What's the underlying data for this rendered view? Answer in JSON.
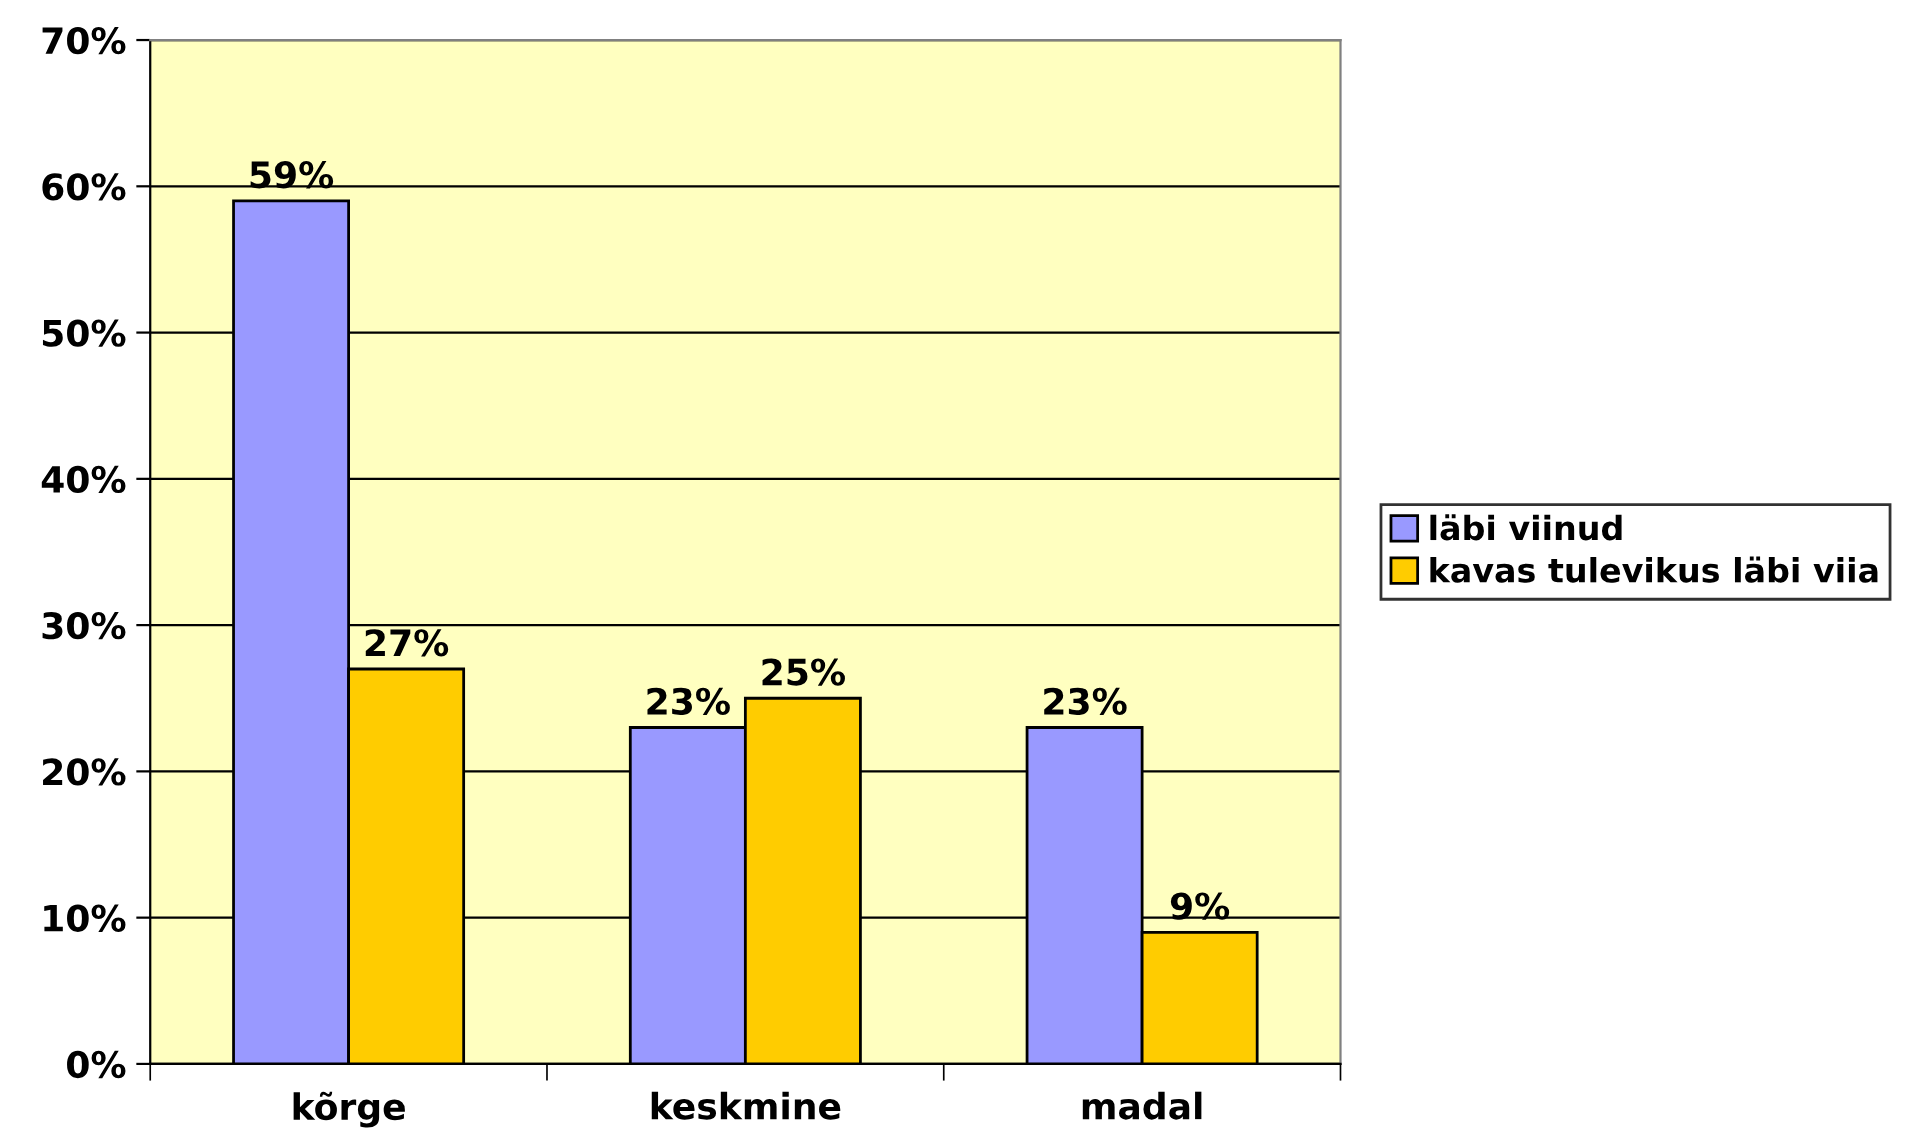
{
  "chart_data": {
    "type": "bar",
    "categories": [
      "kõrge",
      "keskmine",
      "madal"
    ],
    "series": [
      {
        "name": "läbi viinud",
        "color": "#9999ff",
        "values": [
          59,
          23,
          23
        ],
        "value_labels": [
          "59%",
          "23%",
          "23%"
        ]
      },
      {
        "name": "kavas tulevikus läbi viia",
        "color": "#ffcc00",
        "values": [
          27,
          25,
          9
        ],
        "value_labels": [
          "27%",
          "25%",
          "9%"
        ]
      }
    ],
    "ylim": [
      0,
      70
    ],
    "yticks": [
      {
        "value": 0,
        "label": "0%"
      },
      {
        "value": 10,
        "label": "10%"
      },
      {
        "value": 20,
        "label": "20%"
      },
      {
        "value": 30,
        "label": "30%"
      },
      {
        "value": 40,
        "label": "40%"
      },
      {
        "value": 50,
        "label": "50%"
      },
      {
        "value": 60,
        "label": "60%"
      },
      {
        "value": 70,
        "label": "70%"
      }
    ],
    "grid": "y",
    "legend": "right"
  }
}
